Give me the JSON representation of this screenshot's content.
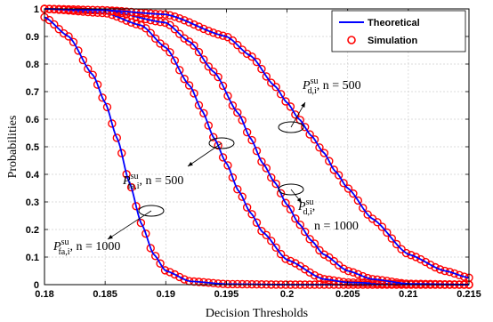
{
  "chart_data": {
    "type": "line",
    "xlabel": "Decision Thresholds",
    "ylabel": "Probabilities",
    "xlim": [
      0.18,
      0.215
    ],
    "ylim": [
      0,
      1
    ],
    "xticks": [
      0.18,
      0.185,
      0.19,
      0.195,
      0.2,
      0.205,
      0.21,
      0.215
    ],
    "xtick_labels": [
      "0.18",
      "0.185",
      "0.19",
      "0.195",
      "0.2",
      "0.205",
      "0.21",
      "0.215"
    ],
    "yticks": [
      0,
      0.1,
      0.2,
      0.3,
      0.4,
      0.5,
      0.6,
      0.7,
      0.8,
      0.9,
      1
    ],
    "ytick_labels": [
      "0",
      "0.1",
      "0.2",
      "0.3",
      "0.4",
      "0.5",
      "0.6",
      "0.7",
      "0.8",
      "0.9",
      "1"
    ],
    "grid": true,
    "legend": {
      "placement": "top-right",
      "entries": [
        {
          "label": "Theoretical",
          "style": "line",
          "color": "#0000ff"
        },
        {
          "label": "Simulation",
          "style": "marker",
          "color": "#ff0000"
        }
      ]
    },
    "series": [
      {
        "id": "fa1000",
        "x": [
          0.18,
          0.182,
          0.184,
          0.185,
          0.186,
          0.187,
          0.188,
          0.189,
          0.19,
          0.192,
          0.195,
          0.2,
          0.205,
          0.21,
          0.215
        ],
        "y": [
          0.97,
          0.9,
          0.76,
          0.66,
          0.53,
          0.37,
          0.22,
          0.11,
          0.05,
          0.012,
          0.002,
          0,
          0,
          0,
          0
        ]
      },
      {
        "id": "fa500",
        "x": [
          0.18,
          0.185,
          0.188,
          0.19,
          0.192,
          0.193,
          0.194,
          0.195,
          0.196,
          0.197,
          0.198,
          0.2,
          0.203,
          0.205,
          0.21,
          0.215
        ],
        "y": [
          1.0,
          0.985,
          0.94,
          0.86,
          0.72,
          0.63,
          0.53,
          0.44,
          0.34,
          0.26,
          0.19,
          0.09,
          0.02,
          0.008,
          0.001,
          0
        ]
      },
      {
        "id": "d1000",
        "x": [
          0.18,
          0.185,
          0.19,
          0.192,
          0.194,
          0.196,
          0.197,
          0.198,
          0.199,
          0.2,
          0.201,
          0.202,
          0.203,
          0.205,
          0.207,
          0.21,
          0.215
        ],
        "y": [
          1.0,
          0.995,
          0.95,
          0.88,
          0.77,
          0.62,
          0.53,
          0.44,
          0.37,
          0.29,
          0.22,
          0.16,
          0.11,
          0.05,
          0.02,
          0.003,
          0
        ]
      },
      {
        "id": "d500",
        "x": [
          0.18,
          0.185,
          0.19,
          0.195,
          0.197,
          0.199,
          0.2,
          0.201,
          0.202,
          0.203,
          0.204,
          0.205,
          0.207,
          0.21,
          0.213,
          0.215
        ],
        "y": [
          1.0,
          0.995,
          0.98,
          0.9,
          0.83,
          0.72,
          0.66,
          0.6,
          0.54,
          0.48,
          0.41,
          0.35,
          0.24,
          0.11,
          0.05,
          0.025
        ]
      }
    ],
    "annotations": [
      {
        "sym": "P",
        "sup": "su",
        "sub": "d,i",
        "rest": ", n = 500"
      },
      {
        "sym": "P",
        "sup": "su",
        "sub": "fa,i",
        "rest": ", n = 500"
      },
      {
        "sym": "P",
        "sup": "su",
        "sub": "d,i",
        "rest": ",",
        "rest2": "n = 1000"
      },
      {
        "sym": "P",
        "sup": "su",
        "sub": "fa,i",
        "rest": ", n = 1000"
      }
    ]
  }
}
